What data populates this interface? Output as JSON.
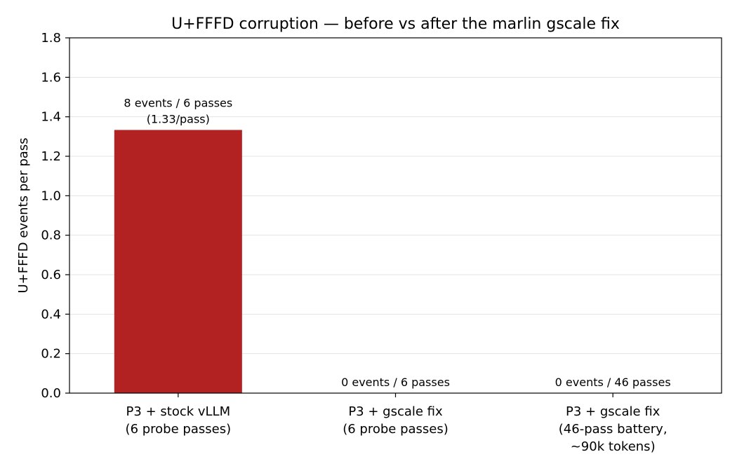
{
  "chart_data": {
    "type": "bar",
    "title": "U+FFFD corruption — before vs after the marlin gscale fix",
    "xlabel": "",
    "ylabel": "U+FFFD events per pass",
    "ylim": [
      0,
      1.8
    ],
    "yticks": [
      "0.0",
      "0.2",
      "0.4",
      "0.6",
      "0.8",
      "1.0",
      "1.2",
      "1.4",
      "1.6",
      "1.8"
    ],
    "grid": "horizontal",
    "categories": [
      [
        "P3 + stock vLLM",
        "(6 probe passes)"
      ],
      [
        "P3 + gscale fix",
        "(6 probe passes)"
      ],
      [
        "P3 + gscale fix",
        "(46-pass battery,",
        "~90k tokens)"
      ]
    ],
    "values": [
      1.3333,
      0,
      0
    ],
    "bar_labels": [
      [
        "8 events / 6 passes",
        "(1.33/pass)"
      ],
      [
        "0 events / 6 passes"
      ],
      [
        "0 events / 46 passes"
      ]
    ],
    "bar_color": "#b22222"
  }
}
